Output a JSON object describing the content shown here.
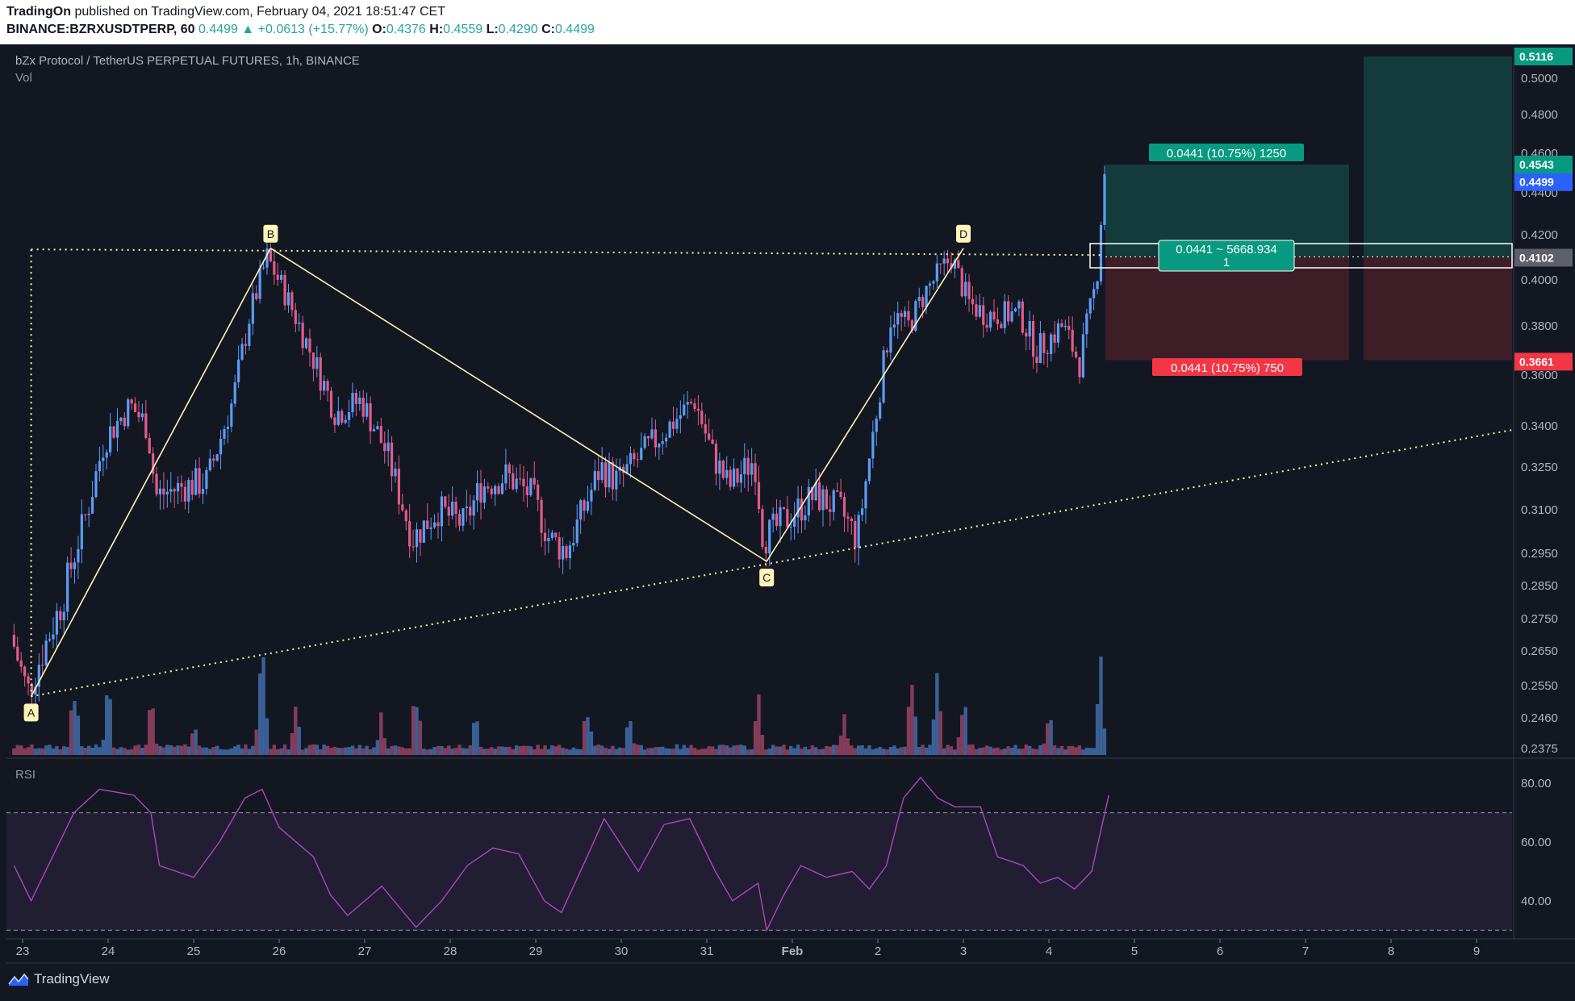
{
  "header": {
    "publisher": "TradingOn",
    "published_text": "published on TradingView.com, February 04, 2021 18:51:47 CET",
    "symbol": "BINANCE:BZRXUSDTPERP, 60",
    "last": "0.4499",
    "change": "▲ +0.0613 (+15.77%)",
    "o_label": "O:",
    "o": "0.4376",
    "h_label": "H:",
    "h": "0.4559",
    "l_label": "L:",
    "l": "0.4290",
    "c_label": "C:",
    "c": "0.4499"
  },
  "chart_title": "bZx Protocol / TetherUS PERPETUAL FUTURES, 1h, BINANCE",
  "vol_label": "Vol",
  "rsi_label": "RSI",
  "footer_brand": "TradingView",
  "colors": {
    "background": "#131722",
    "up": "#5b9cf6",
    "down": "#e05c8a",
    "pattern": "#fff5b8",
    "target_zone": "#133b3b",
    "stop_zone": "#3d1e27",
    "target_tag": "#089981",
    "stop_tag": "#f23645",
    "rsi_line": "#ab47bc",
    "rsi_band": "#211d33"
  },
  "chart_data": {
    "type": "candlestick",
    "timeframe": "1h",
    "x_ticks": [
      "23",
      "24",
      "25",
      "26",
      "27",
      "28",
      "29",
      "30",
      "31",
      "Feb",
      "2",
      "3",
      "4",
      "5",
      "6",
      "7",
      "8",
      "9"
    ],
    "y_ticks": [
      0.5,
      0.48,
      0.46,
      0.44,
      0.42,
      0.4,
      0.38,
      0.36,
      0.34,
      0.325,
      0.31,
      0.295,
      0.285,
      0.275,
      0.265,
      0.255,
      0.246,
      0.2375
    ],
    "y_tick_labels": [
      "0.5000",
      "0.4800",
      "0.4600",
      "0.4400",
      "0.4200",
      "0.4000",
      "0.3800",
      "0.3600",
      "0.3400",
      "0.3250",
      "0.3100",
      "0.2950",
      "0.2850",
      "0.2750",
      "0.2650",
      "0.2550",
      "0.2460",
      "0.2375"
    ],
    "price_path": [
      [
        22.9,
        0.27
      ],
      [
        23.1,
        0.253
      ],
      [
        23.5,
        0.28
      ],
      [
        23.8,
        0.31
      ],
      [
        24.0,
        0.335
      ],
      [
        24.3,
        0.348
      ],
      [
        24.5,
        0.34
      ],
      [
        24.6,
        0.315
      ],
      [
        24.9,
        0.318
      ],
      [
        25.2,
        0.32
      ],
      [
        25.5,
        0.35
      ],
      [
        25.7,
        0.385
      ],
      [
        25.9,
        0.41
      ],
      [
        26.1,
        0.395
      ],
      [
        26.4,
        0.37
      ],
      [
        26.7,
        0.345
      ],
      [
        27.0,
        0.35
      ],
      [
        27.3,
        0.33
      ],
      [
        27.6,
        0.3
      ],
      [
        27.9,
        0.31
      ],
      [
        28.2,
        0.305
      ],
      [
        28.4,
        0.318
      ],
      [
        28.7,
        0.322
      ],
      [
        29.0,
        0.315
      ],
      [
        29.2,
        0.3
      ],
      [
        29.4,
        0.296
      ],
      [
        29.6,
        0.31
      ],
      [
        29.8,
        0.325
      ],
      [
        30.0,
        0.32
      ],
      [
        30.3,
        0.33
      ],
      [
        30.6,
        0.34
      ],
      [
        30.9,
        0.35
      ],
      [
        31.1,
        0.33
      ],
      [
        31.3,
        0.318
      ],
      [
        31.6,
        0.328
      ],
      [
        31.7,
        0.3
      ],
      [
        31.9,
        0.305
      ],
      [
        32.1,
        0.31
      ],
      [
        32.3,
        0.315
      ],
      [
        32.6,
        0.31
      ],
      [
        32.8,
        0.3
      ],
      [
        33.0,
        0.34
      ],
      [
        33.2,
        0.385
      ],
      [
        33.4,
        0.38
      ],
      [
        33.6,
        0.395
      ],
      [
        33.9,
        0.41
      ],
      [
        34.1,
        0.39
      ],
      [
        34.3,
        0.385
      ],
      [
        34.5,
        0.385
      ],
      [
        34.7,
        0.385
      ],
      [
        34.9,
        0.37
      ],
      [
        35.2,
        0.38
      ],
      [
        35.4,
        0.365
      ],
      [
        35.6,
        0.4
      ],
      [
        35.7,
        0.455
      ]
    ],
    "volume_peaks": [
      [
        22.9,
        0.05
      ],
      [
        23.6,
        0.6
      ],
      [
        24.0,
        0.5
      ],
      [
        24.5,
        0.4
      ],
      [
        25.0,
        0.3
      ],
      [
        25.8,
        1.0
      ],
      [
        26.2,
        0.5
      ],
      [
        27.2,
        0.3
      ],
      [
        27.6,
        0.55
      ],
      [
        28.3,
        0.3
      ],
      [
        29.6,
        0.4
      ],
      [
        30.1,
        0.3
      ],
      [
        31.6,
        0.4
      ],
      [
        32.6,
        0.3
      ],
      [
        33.4,
        0.75
      ],
      [
        33.7,
        0.6
      ],
      [
        34.0,
        0.45
      ],
      [
        35.0,
        0.45
      ],
      [
        35.6,
        0.65
      ],
      [
        35.7,
        0.2
      ]
    ],
    "rsi_ticks": [
      80,
      60,
      40
    ],
    "rsi_levels": [
      70,
      30
    ],
    "rsi_path": [
      [
        22.9,
        52
      ],
      [
        23.1,
        40
      ],
      [
        23.6,
        70
      ],
      [
        23.9,
        78
      ],
      [
        24.3,
        76
      ],
      [
        24.5,
        70
      ],
      [
        24.6,
        52
      ],
      [
        25.0,
        48
      ],
      [
        25.3,
        60
      ],
      [
        25.6,
        75
      ],
      [
        25.8,
        78
      ],
      [
        26.0,
        65
      ],
      [
        26.4,
        55
      ],
      [
        26.6,
        42
      ],
      [
        26.8,
        35
      ],
      [
        27.2,
        45
      ],
      [
        27.4,
        38
      ],
      [
        27.6,
        31
      ],
      [
        27.9,
        40
      ],
      [
        28.2,
        52
      ],
      [
        28.5,
        58
      ],
      [
        28.8,
        56
      ],
      [
        29.1,
        40
      ],
      [
        29.3,
        36
      ],
      [
        29.6,
        55
      ],
      [
        29.8,
        68
      ],
      [
        30.2,
        50
      ],
      [
        30.5,
        66
      ],
      [
        30.8,
        68
      ],
      [
        31.1,
        50
      ],
      [
        31.3,
        40
      ],
      [
        31.6,
        46
      ],
      [
        31.7,
        30
      ],
      [
        31.9,
        42
      ],
      [
        32.1,
        52
      ],
      [
        32.4,
        48
      ],
      [
        32.7,
        50
      ],
      [
        32.9,
        44
      ],
      [
        33.1,
        52
      ],
      [
        33.3,
        75
      ],
      [
        33.5,
        82
      ],
      [
        33.7,
        75
      ],
      [
        33.9,
        72
      ],
      [
        34.2,
        72
      ],
      [
        34.4,
        55
      ],
      [
        34.7,
        52
      ],
      [
        34.9,
        46
      ],
      [
        35.1,
        48
      ],
      [
        35.3,
        44
      ],
      [
        35.5,
        50
      ],
      [
        35.7,
        76
      ]
    ],
    "pattern": {
      "points": [
        {
          "label": "A",
          "x": 23.1,
          "y": 0.252
        },
        {
          "label": "B",
          "x": 25.9,
          "y": 0.414
        },
        {
          "label": "C",
          "x": 31.7,
          "y": 0.2925
        },
        {
          "label": "D",
          "x": 34.0,
          "y": 0.414
        }
      ]
    },
    "position": {
      "entry_label": "0.4102",
      "target_label": "0.4543",
      "stop_label": "0.3661",
      "current_label": "0.4499",
      "top_label": "0.5116",
      "target_text": "0.0441 (10.75%) 1250",
      "stop_text": "0.0441 (10.75%) 750",
      "mid_text": "0.0441 ~ 5668.934",
      "mid_sub": "1"
    }
  }
}
